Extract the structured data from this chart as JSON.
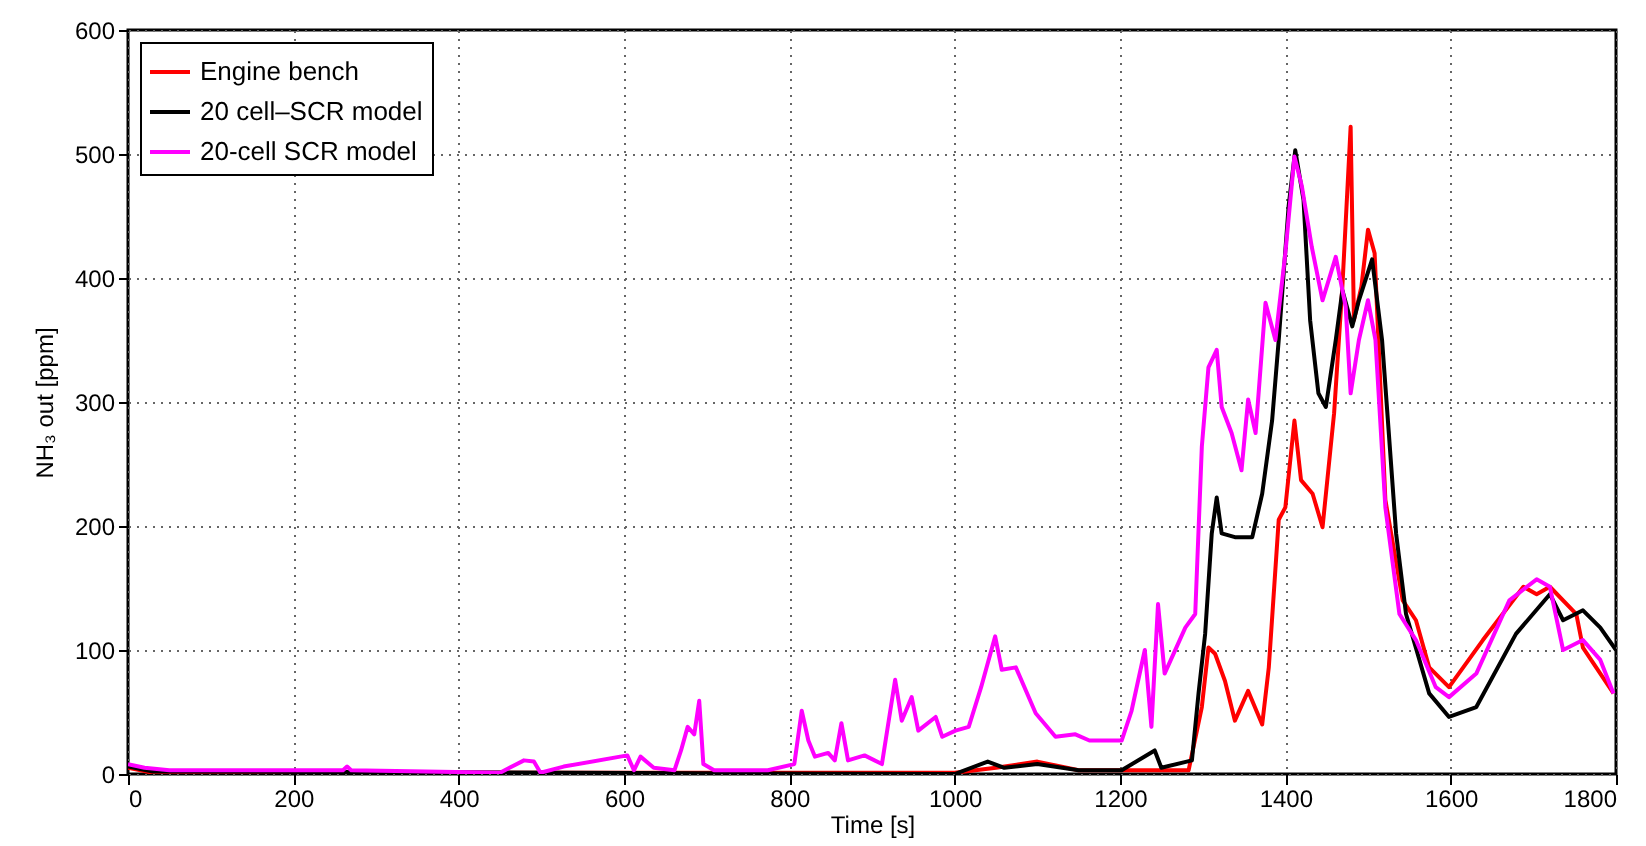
{
  "chart_data": {
    "type": "line",
    "xlabel": "Time [s]",
    "ylabel": "NH₃ out [ppm]",
    "xlim": [
      0,
      1800
    ],
    "xticks": [
      0,
      200,
      400,
      600,
      800,
      1000,
      1200,
      1400,
      1600,
      1800
    ],
    "ylim": [
      0,
      600
    ],
    "yticks": [
      0,
      100,
      200,
      300,
      400,
      500,
      600
    ],
    "grid": true,
    "legend": "top left",
    "line_style": "solid",
    "marker": "none",
    "series": [
      {
        "name": "Engine bench",
        "color": "#ff0000",
        "x": [
          0,
          30,
          1000,
          1050,
          1100,
          1150,
          1270,
          1283,
          1299,
          1307,
          1315,
          1327,
          1339,
          1355,
          1372,
          1380,
          1392,
          1400,
          1411,
          1419,
          1433,
          1445,
          1459,
          1469,
          1479,
          1483,
          1492,
          1500,
          1508,
          1521,
          1542,
          1558,
          1574,
          1598,
          1639,
          1688,
          1704,
          1720,
          1752,
          1760,
          1797
        ],
        "values": [
          5,
          1,
          1,
          5,
          10,
          3,
          3,
          3,
          54,
          102,
          97,
          75,
          43,
          67,
          40,
          86,
          205,
          215,
          285,
          237,
          226,
          199,
          291,
          393,
          522,
          366,
          393,
          439,
          420,
          221,
          140,
          124,
          86,
          70,
          108,
          151,
          145,
          151,
          129,
          102,
          65
        ]
      },
      {
        "name": "20 cell–SCR model",
        "color": "#000000",
        "x": [
          0,
          30,
          1000,
          1040,
          1060,
          1100,
          1150,
          1202,
          1242,
          1250,
          1287,
          1295,
          1303,
          1311,
          1317,
          1323,
          1339,
          1360,
          1372,
          1384,
          1392,
          1404,
          1412,
          1422,
          1430,
          1440,
          1449,
          1461,
          1469,
          1481,
          1489,
          1505,
          1517,
          1534,
          1546,
          1574,
          1598,
          1631,
          1679,
          1720,
          1736,
          1760,
          1781,
          1800
        ],
        "values": [
          6,
          2,
          0,
          10,
          5,
          8,
          3,
          3,
          19,
          5,
          11,
          65,
          113,
          194,
          223,
          194,
          191,
          191,
          226,
          285,
          350,
          458,
          503,
          463,
          366,
          307,
          296,
          350,
          390,
          361,
          382,
          415,
          350,
          194,
          129,
          65,
          46,
          54,
          113,
          145,
          124,
          132,
          118,
          100
        ]
      },
      {
        "name": "20-cell SCR model",
        "color": "#ff00ff",
        "x": [
          0,
          20,
          50,
          260,
          265,
          270,
          450,
          479,
          491,
          499,
          527,
          604,
          612,
          620,
          636,
          661,
          669,
          677,
          685,
          691,
          696,
          709,
          774,
          806,
          815,
          823,
          831,
          847,
          855,
          863,
          871,
          891,
          912,
          928,
          936,
          948,
          956,
          977,
          985,
          1001,
          1017,
          1032,
          1049,
          1057,
          1074,
          1098,
          1122,
          1146,
          1163,
          1202,
          1214,
          1230,
          1238,
          1246,
          1254,
          1279,
          1291,
          1299,
          1307,
          1317,
          1323,
          1335,
          1347,
          1355,
          1364,
          1376,
          1388,
          1400,
          1411,
          1420,
          1432,
          1445,
          1461,
          1473,
          1479,
          1489,
          1500,
          1509,
          1521,
          1538,
          1558,
          1582,
          1598,
          1631,
          1671,
          1704,
          1720,
          1736,
          1760,
          1781,
          1797
        ],
        "values": [
          8,
          5,
          3,
          3,
          6,
          3,
          1,
          11,
          10,
          1,
          6,
          15,
          3,
          14,
          5,
          3,
          19,
          38,
          32,
          59,
          8,
          3,
          3,
          8,
          51,
          27,
          14,
          17,
          11,
          41,
          11,
          15,
          8,
          76,
          43,
          62,
          35,
          46,
          30,
          35,
          38,
          70,
          111,
          84,
          86,
          49,
          30,
          32,
          27,
          27,
          51,
          100,
          38,
          137,
          81,
          118,
          129,
          264,
          328,
          342,
          296,
          275,
          245,
          302,
          275,
          380,
          350,
          420,
          498,
          474,
          425,
          382,
          417,
          377,
          307,
          350,
          382,
          350,
          215,
          129,
          108,
          70,
          62,
          81,
          140,
          157,
          151,
          100,
          108,
          92,
          65
        ]
      }
    ]
  }
}
